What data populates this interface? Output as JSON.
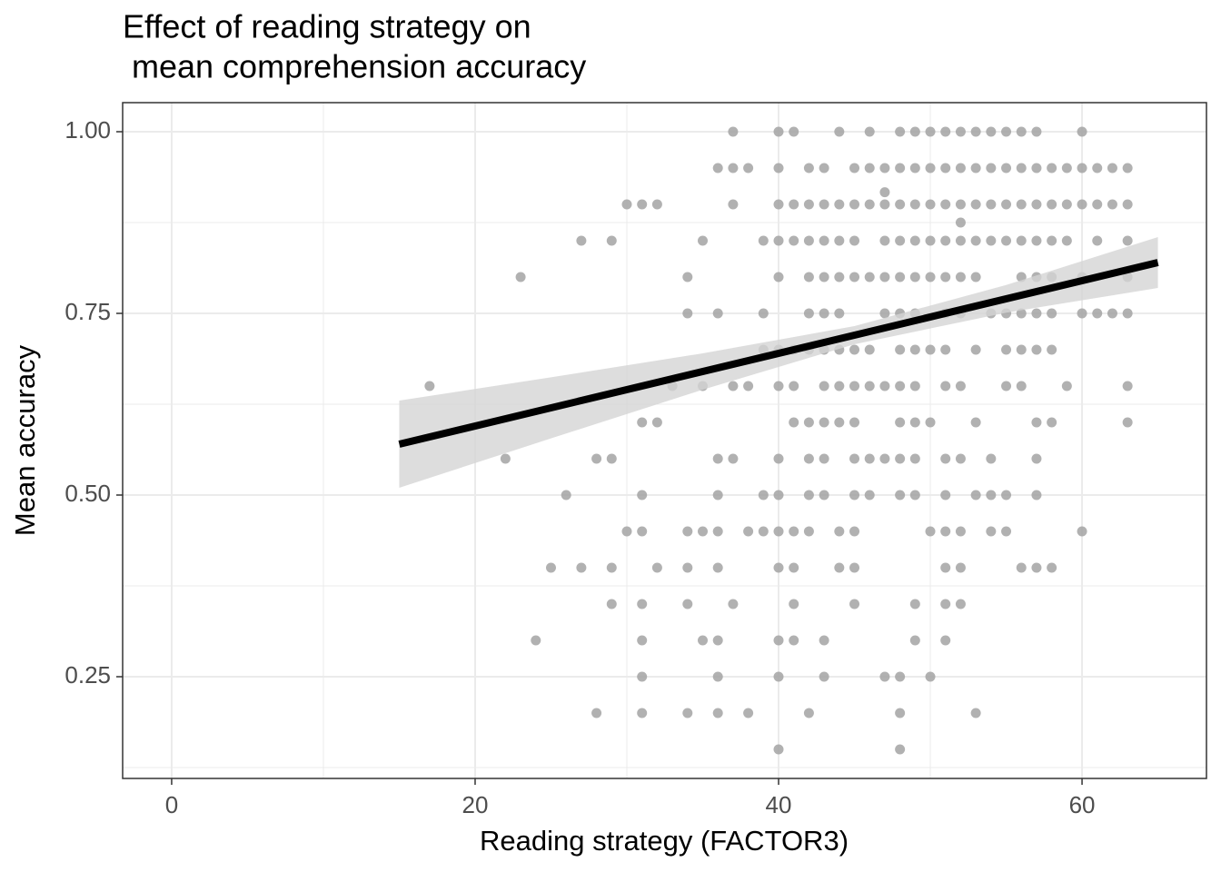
{
  "chart_data": {
    "type": "scatter",
    "title": [
      "Effect of reading strategy on",
      " mean comprehension accuracy"
    ],
    "x_label": "Reading strategy (FACTOR3)",
    "y_label": "Mean accuracy",
    "xlim": [
      -3.23,
      68.2
    ],
    "ylim": [
      0.11,
      1.04
    ],
    "xticks": [
      0,
      20,
      40,
      60
    ],
    "yticks": [
      {
        "value": 0.25,
        "label": "0.25"
      },
      {
        "value": 0.5,
        "label": "0.50"
      },
      {
        "value": 0.75,
        "label": "0.75"
      },
      {
        "value": 1,
        "label": "1.00"
      }
    ],
    "minor_xticks": [
      10,
      30,
      50
    ],
    "minor_yticks": [
      0.125,
      0.375,
      0.625,
      0.875
    ],
    "grid": true,
    "color": "#a3a3a3",
    "x": [
      37,
      40,
      41,
      44,
      46,
      48,
      49,
      50,
      51,
      52,
      53,
      54,
      55,
      56,
      57,
      60,
      36,
      37,
      38,
      40,
      42,
      43,
      45,
      46,
      47,
      48,
      49,
      50,
      51,
      52,
      53,
      54,
      55,
      56,
      57,
      58,
      59,
      60,
      61,
      62,
      63,
      47,
      30,
      31,
      32,
      37,
      40,
      41,
      42,
      43,
      44,
      45,
      46,
      47,
      48,
      49,
      50,
      51,
      52,
      53,
      54,
      55,
      56,
      57,
      58,
      59,
      60,
      61,
      62,
      63,
      52,
      27,
      29,
      35,
      39,
      40,
      41,
      42,
      43,
      44,
      45,
      47,
      48,
      49,
      50,
      51,
      52,
      53,
      54,
      55,
      56,
      57,
      58,
      59,
      61,
      63,
      23,
      34,
      40,
      42,
      43,
      44,
      45,
      46,
      47,
      48,
      49,
      50,
      51,
      52,
      53,
      56,
      57,
      58,
      60,
      63,
      34,
      36,
      39,
      42,
      43,
      44,
      47,
      48,
      49,
      51,
      52,
      54,
      55,
      56,
      57,
      58,
      60,
      61,
      62,
      63,
      39,
      40,
      41,
      42,
      43,
      44,
      45,
      46,
      48,
      49,
      50,
      51,
      53,
      55,
      56,
      57,
      58,
      17,
      33,
      35,
      37,
      38,
      40,
      41,
      43,
      44,
      45,
      46,
      47,
      48,
      49,
      51,
      52,
      55,
      56,
      59,
      63,
      31,
      32,
      41,
      42,
      43,
      44,
      45,
      48,
      49,
      50,
      53,
      57,
      58,
      63,
      22,
      28,
      29,
      36,
      37,
      40,
      42,
      43,
      45,
      46,
      47,
      48,
      49,
      51,
      52,
      54,
      57,
      26,
      31,
      36,
      39,
      40,
      42,
      43,
      45,
      46,
      48,
      49,
      51,
      53,
      54,
      55,
      57,
      30,
      31,
      34,
      35,
      36,
      38,
      39,
      40,
      41,
      42,
      44,
      45,
      50,
      51,
      52,
      54,
      55,
      60,
      25,
      27,
      29,
      32,
      34,
      36,
      40,
      41,
      44,
      45,
      51,
      52,
      56,
      57,
      58,
      29,
      31,
      34,
      37,
      41,
      45,
      49,
      51,
      52,
      24,
      31,
      35,
      36,
      40,
      41,
      43,
      49,
      51,
      31,
      36,
      40,
      43,
      47,
      48,
      50,
      28,
      31,
      34,
      36,
      38,
      42,
      48,
      53,
      40,
      48
    ],
    "values": [
      1,
      1,
      1,
      1,
      1,
      1,
      1,
      1,
      1,
      1,
      1,
      1,
      1,
      1,
      1,
      1,
      0.95,
      0.95,
      0.95,
      0.95,
      0.95,
      0.95,
      0.95,
      0.95,
      0.95,
      0.95,
      0.95,
      0.95,
      0.95,
      0.95,
      0.95,
      0.95,
      0.95,
      0.95,
      0.95,
      0.95,
      0.95,
      0.95,
      0.95,
      0.95,
      0.95,
      0.9167,
      0.9,
      0.9,
      0.9,
      0.9,
      0.9,
      0.9,
      0.9,
      0.9,
      0.9,
      0.9,
      0.9,
      0.9,
      0.9,
      0.9,
      0.9,
      0.9,
      0.9,
      0.9,
      0.9,
      0.9,
      0.9,
      0.9,
      0.9,
      0.9,
      0.9,
      0.9,
      0.9,
      0.9,
      0.875,
      0.85,
      0.85,
      0.85,
      0.85,
      0.85,
      0.85,
      0.85,
      0.85,
      0.85,
      0.85,
      0.85,
      0.85,
      0.85,
      0.85,
      0.85,
      0.85,
      0.85,
      0.85,
      0.85,
      0.85,
      0.85,
      0.85,
      0.85,
      0.85,
      0.85,
      0.8,
      0.8,
      0.8,
      0.8,
      0.8,
      0.8,
      0.8,
      0.8,
      0.8,
      0.8,
      0.8,
      0.8,
      0.8,
      0.8,
      0.8,
      0.8,
      0.8,
      0.8,
      0.8,
      0.8,
      0.75,
      0.75,
      0.75,
      0.75,
      0.75,
      0.75,
      0.75,
      0.75,
      0.75,
      0.75,
      0.75,
      0.75,
      0.75,
      0.75,
      0.75,
      0.75,
      0.75,
      0.75,
      0.75,
      0.75,
      0.7,
      0.7,
      0.7,
      0.7,
      0.7,
      0.7,
      0.7,
      0.7,
      0.7,
      0.7,
      0.7,
      0.7,
      0.7,
      0.7,
      0.7,
      0.7,
      0.7,
      0.65,
      0.65,
      0.65,
      0.65,
      0.65,
      0.65,
      0.65,
      0.65,
      0.65,
      0.65,
      0.65,
      0.65,
      0.65,
      0.65,
      0.65,
      0.65,
      0.65,
      0.65,
      0.65,
      0.65,
      0.6,
      0.6,
      0.6,
      0.6,
      0.6,
      0.6,
      0.6,
      0.6,
      0.6,
      0.6,
      0.6,
      0.6,
      0.6,
      0.6,
      0.55,
      0.55,
      0.55,
      0.55,
      0.55,
      0.55,
      0.55,
      0.55,
      0.55,
      0.55,
      0.55,
      0.55,
      0.55,
      0.55,
      0.55,
      0.55,
      0.55,
      0.5,
      0.5,
      0.5,
      0.5,
      0.5,
      0.5,
      0.5,
      0.5,
      0.5,
      0.5,
      0.5,
      0.5,
      0.5,
      0.5,
      0.5,
      0.5,
      0.45,
      0.45,
      0.45,
      0.45,
      0.45,
      0.45,
      0.45,
      0.45,
      0.45,
      0.45,
      0.45,
      0.45,
      0.45,
      0.45,
      0.45,
      0.45,
      0.45,
      0.45,
      0.4,
      0.4,
      0.4,
      0.4,
      0.4,
      0.4,
      0.4,
      0.4,
      0.4,
      0.4,
      0.4,
      0.4,
      0.4,
      0.4,
      0.4,
      0.35,
      0.35,
      0.35,
      0.35,
      0.35,
      0.35,
      0.35,
      0.35,
      0.35,
      0.3,
      0.3,
      0.3,
      0.3,
      0.3,
      0.3,
      0.3,
      0.3,
      0.3,
      0.25,
      0.25,
      0.25,
      0.25,
      0.25,
      0.25,
      0.25,
      0.2,
      0.2,
      0.2,
      0.2,
      0.2,
      0.2,
      0.2,
      0.2,
      0.15,
      0.15
    ],
    "fit": {
      "color": "#000000",
      "x": [
        15,
        65
      ],
      "y": [
        0.57,
        0.82
      ]
    },
    "band": {
      "color": "#d4d4d4",
      "x": [
        15,
        25,
        35,
        45,
        55,
        65
      ],
      "lower": [
        0.51,
        0.578,
        0.645,
        0.7075,
        0.751,
        0.785
      ],
      "upper": [
        0.63,
        0.662,
        0.695,
        0.7325,
        0.789,
        0.855
      ]
    }
  }
}
